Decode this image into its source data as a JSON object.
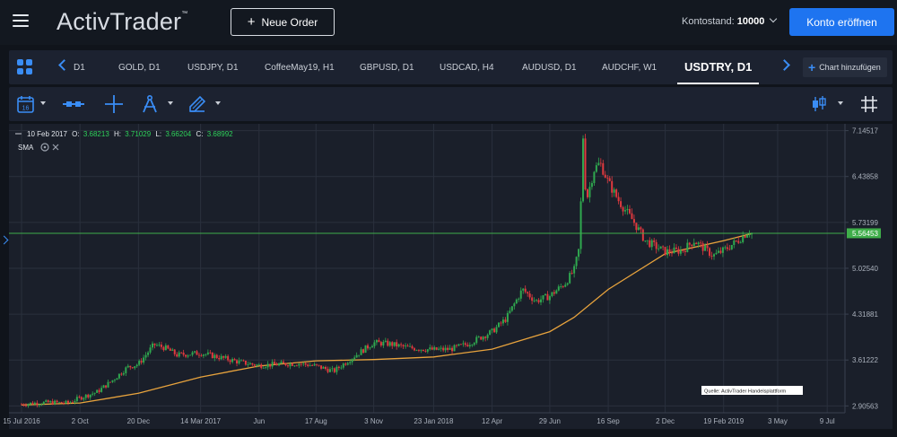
{
  "header": {
    "logo_text": "ActivTrader",
    "logo_tm": "™",
    "new_order_label": "Neue Order",
    "balance_label": "Kontostand:",
    "balance_value": "10000",
    "open_account_label": "Konto eröffnen"
  },
  "tabs": [
    {
      "label": "D1",
      "active": false
    },
    {
      "label": "GOLD, D1",
      "active": false
    },
    {
      "label": "USDJPY, D1",
      "active": false
    },
    {
      "label": "CoffeeMay19, H1",
      "active": false
    },
    {
      "label": "GBPUSD, D1",
      "active": false
    },
    {
      "label": "USDCAD, H4",
      "active": false
    },
    {
      "label": "AUDUSD, D1",
      "active": false
    },
    {
      "label": "AUDCHF, W1",
      "active": false
    },
    {
      "label": "USDTRY, D1",
      "active": true
    }
  ],
  "add_chart_label": "Chart hinzufügen",
  "toolbar": {
    "calendar_icon": "calendar-icon",
    "calendar_day": "16",
    "range_icon": "range-icon",
    "crosshair_icon": "crosshair-icon",
    "drawing_icon": "compass-icon",
    "shapes_icon": "pencil-icon",
    "chart_type_icon": "candles-icon",
    "grid_icon": "grid-hash-icon"
  },
  "ohlc": {
    "date": "10 Feb 2017",
    "open_label": "O:",
    "open": "3.68213",
    "high_label": "H:",
    "high": "3.71029",
    "low_label": "L:",
    "low": "3.66204",
    "close_label": "C:",
    "close": "3.68992"
  },
  "indicator": {
    "label": "SMA"
  },
  "source_note": "Quelle: ActivTrader Handelsplattform",
  "colors": {
    "background": "#1a1f2a",
    "up": "#2fa84f",
    "down": "#e0393e",
    "sma": "#e8a33d",
    "hline": "#3fae4a",
    "accent": "#1e74f0"
  },
  "chart_data": {
    "type": "candlestick",
    "symbol": "USDTRY",
    "timeframe": "D1",
    "x_ticks": [
      "15 Jul 2016",
      "2 Oct",
      "20 Dec",
      "14 Mar 2017",
      "Jun",
      "17 Aug",
      "3 Nov",
      "23 Jan 2018",
      "12 Apr",
      "29 Jun",
      "16 Sep",
      "2 Dec",
      "19 Feb 2019",
      "3 May",
      "9 Jul"
    ],
    "y_ticks": [
      "7.14517",
      "6.43858",
      "5.73199",
      "5.02540",
      "4.31881",
      "3.61222",
      "2.90563"
    ],
    "ylim": [
      2.8,
      7.25
    ],
    "current_price": "5.56453",
    "price_series": [
      {
        "date": "2016-07-15",
        "value": 2.93
      },
      {
        "date": "2016-08-01",
        "value": 2.95
      },
      {
        "date": "2016-08-25",
        "value": 2.96
      },
      {
        "date": "2016-09-15",
        "value": 2.95
      },
      {
        "date": "2016-10-02",
        "value": 3.03
      },
      {
        "date": "2016-10-25",
        "value": 3.12
      },
      {
        "date": "2016-11-15",
        "value": 3.3
      },
      {
        "date": "2016-12-05",
        "value": 3.5
      },
      {
        "date": "2016-12-20",
        "value": 3.55
      },
      {
        "date": "2017-01-10",
        "value": 3.85
      },
      {
        "date": "2017-01-25",
        "value": 3.8
      },
      {
        "date": "2017-02-10",
        "value": 3.69
      },
      {
        "date": "2017-03-14",
        "value": 3.72
      },
      {
        "date": "2017-04-10",
        "value": 3.65
      },
      {
        "date": "2017-05-10",
        "value": 3.57
      },
      {
        "date": "2017-06-01",
        "value": 3.53
      },
      {
        "date": "2017-07-01",
        "value": 3.55
      },
      {
        "date": "2017-07-25",
        "value": 3.56
      },
      {
        "date": "2017-08-17",
        "value": 3.52
      },
      {
        "date": "2017-09-10",
        "value": 3.44
      },
      {
        "date": "2017-10-05",
        "value": 3.65
      },
      {
        "date": "2017-11-03",
        "value": 3.88
      },
      {
        "date": "2017-11-25",
        "value": 3.86
      },
      {
        "date": "2017-12-20",
        "value": 3.8
      },
      {
        "date": "2018-01-23",
        "value": 3.77
      },
      {
        "date": "2018-02-15",
        "value": 3.78
      },
      {
        "date": "2018-03-10",
        "value": 3.86
      },
      {
        "date": "2018-04-12",
        "value": 4.05
      },
      {
        "date": "2018-05-01",
        "value": 4.25
      },
      {
        "date": "2018-05-23",
        "value": 4.7
      },
      {
        "date": "2018-06-10",
        "value": 4.52
      },
      {
        "date": "2018-06-29",
        "value": 4.6
      },
      {
        "date": "2018-07-20",
        "value": 4.8
      },
      {
        "date": "2018-08-01",
        "value": 5.0
      },
      {
        "date": "2018-08-08",
        "value": 5.35
      },
      {
        "date": "2018-08-13",
        "value": 7.05
      },
      {
        "date": "2018-08-17",
        "value": 6.05
      },
      {
        "date": "2018-08-28",
        "value": 6.55
      },
      {
        "date": "2018-09-05",
        "value": 6.65
      },
      {
        "date": "2018-09-16",
        "value": 6.35
      },
      {
        "date": "2018-10-01",
        "value": 6.05
      },
      {
        "date": "2018-10-20",
        "value": 5.75
      },
      {
        "date": "2018-11-05",
        "value": 5.45
      },
      {
        "date": "2018-12-02",
        "value": 5.28
      },
      {
        "date": "2018-12-25",
        "value": 5.3
      },
      {
        "date": "2019-01-10",
        "value": 5.45
      },
      {
        "date": "2019-02-05",
        "value": 5.22
      },
      {
        "date": "2019-02-19",
        "value": 5.3
      },
      {
        "date": "2019-03-10",
        "value": 5.45
      },
      {
        "date": "2019-03-25",
        "value": 5.6
      },
      {
        "date": "2019-03-29",
        "value": 5.56
      }
    ],
    "sma_series": [
      {
        "date": "2016-07-15",
        "value": 2.92
      },
      {
        "date": "2016-10-02",
        "value": 2.95
      },
      {
        "date": "2016-12-20",
        "value": 3.1
      },
      {
        "date": "2017-03-14",
        "value": 3.35
      },
      {
        "date": "2017-06-01",
        "value": 3.52
      },
      {
        "date": "2017-08-17",
        "value": 3.6
      },
      {
        "date": "2017-11-03",
        "value": 3.62
      },
      {
        "date": "2018-01-23",
        "value": 3.66
      },
      {
        "date": "2018-04-12",
        "value": 3.78
      },
      {
        "date": "2018-06-29",
        "value": 4.05
      },
      {
        "date": "2018-08-01",
        "value": 4.27
      },
      {
        "date": "2018-09-16",
        "value": 4.7
      },
      {
        "date": "2018-12-02",
        "value": 5.25
      },
      {
        "date": "2019-02-19",
        "value": 5.45
      },
      {
        "date": "2019-03-29",
        "value": 5.56
      }
    ]
  }
}
